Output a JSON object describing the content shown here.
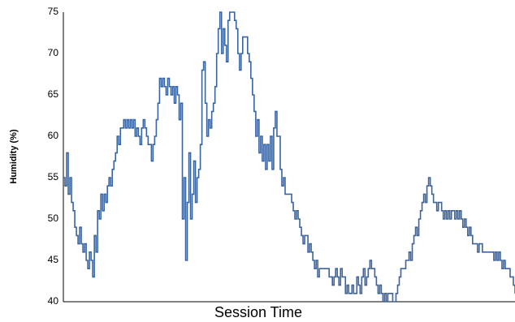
{
  "chart_data": {
    "type": "line",
    "x_label": "Session Time",
    "y_label": "Humidity (%)",
    "series": [
      {
        "name": "Humidity",
        "color": "#3a64a0",
        "values": [
          55,
          54,
          58,
          53,
          55,
          52,
          51,
          49,
          48,
          47,
          49,
          47,
          46,
          47,
          45,
          44,
          46,
          45,
          43,
          48,
          46,
          51,
          50,
          53,
          51,
          53,
          52,
          54,
          55,
          54,
          56,
          57,
          58,
          60,
          59,
          61,
          61,
          62,
          61,
          62,
          61,
          62,
          61,
          62,
          60,
          61,
          60,
          59,
          61,
          62,
          61,
          60,
          59,
          59,
          57,
          59,
          60,
          62,
          64,
          67,
          66,
          67,
          66,
          65,
          67,
          66,
          65,
          66,
          64,
          66,
          65,
          62,
          64,
          50,
          55,
          45,
          52,
          58,
          50,
          53,
          57,
          52,
          55,
          56,
          59,
          68,
          69,
          64,
          60,
          62,
          61,
          63,
          64,
          66,
          70,
          73,
          75,
          70,
          73,
          71,
          69,
          74,
          75,
          75,
          75,
          74,
          73,
          70,
          68,
          70,
          72,
          72,
          72,
          70,
          69,
          67,
          65,
          63,
          60,
          62,
          58,
          60,
          57,
          59,
          56,
          59,
          57,
          60,
          56,
          61,
          63,
          60,
          60,
          56,
          54,
          55,
          53,
          53,
          53,
          53,
          52,
          51,
          50,
          51,
          50,
          49,
          48,
          47,
          48,
          48,
          46,
          47,
          46,
          45,
          44,
          45,
          43,
          44,
          44,
          44,
          44,
          44,
          44,
          43,
          43,
          42,
          43,
          44,
          43,
          42,
          44,
          43,
          43,
          41,
          42,
          41,
          41,
          42,
          41,
          41,
          43,
          42,
          41,
          43,
          44,
          42,
          43,
          44,
          45,
          44,
          44,
          43,
          42,
          41,
          42,
          41,
          40,
          41,
          40,
          41,
          41,
          41,
          40,
          40,
          41,
          42,
          43,
          44,
          44,
          44,
          45,
          45,
          46,
          45,
          47,
          48,
          49,
          48,
          50,
          51,
          52,
          53,
          52,
          54,
          55,
          54,
          53,
          52,
          52,
          51,
          52,
          52,
          51,
          50,
          51,
          50,
          51,
          50,
          51,
          51,
          50,
          51,
          50,
          51,
          50,
          49,
          50,
          49,
          48,
          49,
          48,
          47,
          47,
          47,
          46,
          47,
          47,
          46,
          46,
          46,
          46,
          46,
          46,
          46,
          45,
          46,
          45,
          46,
          45,
          44,
          45,
          44,
          44,
          44,
          43,
          43,
          42,
          41
        ]
      }
    ],
    "ylim": [
      40,
      75
    ],
    "yticks": [
      40,
      45,
      50,
      55,
      60,
      65,
      70,
      75
    ],
    "grid": false,
    "step": true
  }
}
